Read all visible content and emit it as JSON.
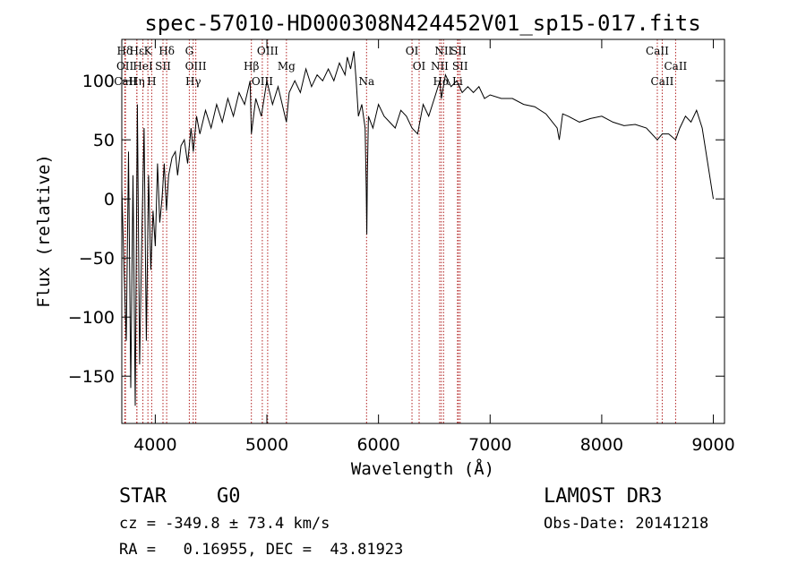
{
  "chart_data": {
    "type": "line",
    "title": "spec-57010-HD000308N424452V01_sp15-017.fits",
    "xlabel": "Wavelength (Å)",
    "ylabel": "Flux (relative)",
    "xlim": [
      3700,
      9100
    ],
    "ylim": [
      -190,
      135
    ],
    "x_ticks": [
      4000,
      5000,
      6000,
      7000,
      8000,
      9000
    ],
    "y_ticks": [
      -150,
      -100,
      -50,
      0,
      50,
      100
    ],
    "series": [
      {
        "name": "flux",
        "x": [
          3700,
          3720,
          3740,
          3760,
          3780,
          3800,
          3820,
          3840,
          3860,
          3880,
          3900,
          3920,
          3940,
          3960,
          3980,
          4000,
          4020,
          4040,
          4060,
          4080,
          4100,
          4120,
          4150,
          4180,
          4200,
          4230,
          4260,
          4290,
          4320,
          4340,
          4370,
          4400,
          4450,
          4500,
          4550,
          4600,
          4650,
          4700,
          4750,
          4800,
          4850,
          4861,
          4900,
          4950,
          5000,
          5050,
          5100,
          5150,
          5175,
          5200,
          5250,
          5300,
          5350,
          5400,
          5450,
          5500,
          5550,
          5600,
          5650,
          5700,
          5720,
          5750,
          5780,
          5800,
          5820,
          5850,
          5880,
          5890,
          5895,
          5900,
          5910,
          5950,
          6000,
          6050,
          6100,
          6150,
          6200,
          6250,
          6300,
          6350,
          6400,
          6450,
          6500,
          6550,
          6563,
          6600,
          6650,
          6700,
          6750,
          6800,
          6850,
          6900,
          6950,
          7000,
          7100,
          7200,
          7300,
          7400,
          7500,
          7600,
          7620,
          7650,
          7700,
          7800,
          7900,
          8000,
          8100,
          8200,
          8300,
          8400,
          8498,
          8542,
          8600,
          8662,
          8700,
          8750,
          8800,
          8850,
          8900,
          8950,
          9000
        ],
        "y": [
          10,
          -60,
          -120,
          40,
          -160,
          20,
          -175,
          80,
          -140,
          -30,
          60,
          -120,
          20,
          -60,
          -10,
          -40,
          30,
          -20,
          0,
          30,
          -10,
          20,
          35,
          40,
          20,
          45,
          50,
          30,
          60,
          40,
          70,
          55,
          75,
          60,
          80,
          65,
          85,
          70,
          90,
          80,
          100,
          55,
          85,
          70,
          100,
          80,
          95,
          75,
          65,
          90,
          100,
          90,
          110,
          95,
          105,
          100,
          110,
          100,
          115,
          105,
          120,
          110,
          125,
          100,
          70,
          80,
          60,
          10,
          -30,
          20,
          70,
          60,
          80,
          70,
          65,
          60,
          75,
          70,
          60,
          55,
          80,
          70,
          85,
          100,
          85,
          105,
          95,
          100,
          90,
          95,
          90,
          95,
          85,
          88,
          85,
          85,
          80,
          78,
          72,
          60,
          50,
          72,
          70,
          65,
          68,
          70,
          65,
          62,
          63,
          60,
          50,
          55,
          55,
          50,
          60,
          70,
          65,
          75,
          60,
          30,
          0
        ]
      }
    ],
    "line_markers": [
      {
        "label": "Hδ",
        "wavelength": 3727
      },
      {
        "label": "OII",
        "wavelength": 3729
      },
      {
        "label": "CaII",
        "wavelength": 3733
      },
      {
        "label": "Hε",
        "wavelength": 3835
      },
      {
        "label": "HeI",
        "wavelength": 3889
      },
      {
        "label": "Hη",
        "wavelength": 3835
      },
      {
        "label": "K",
        "wavelength": 3934
      },
      {
        "label": "SII",
        "wavelength": 4069
      },
      {
        "label": "H",
        "wavelength": 3968
      },
      {
        "label": "Hδ",
        "wavelength": 4102
      },
      {
        "label": "OIII",
        "wavelength": 4363
      },
      {
        "label": "Hγ",
        "wavelength": 4340
      },
      {
        "label": "G",
        "wavelength": 4305
      },
      {
        "label": "Hβ",
        "wavelength": 4861
      },
      {
        "label": "OIII",
        "wavelength": 4959
      },
      {
        "label": "OIII",
        "wavelength": 5007
      },
      {
        "label": "Mg",
        "wavelength": 5175
      },
      {
        "label": "Na",
        "wavelength": 5893
      },
      {
        "label": "OI",
        "wavelength": 6300
      },
      {
        "label": "OI",
        "wavelength": 6364
      },
      {
        "label": "Hα",
        "wavelength": 6563
      },
      {
        "label": "SII",
        "wavelength": 6716
      },
      {
        "label": "NII",
        "wavelength": 6548
      },
      {
        "label": "Li",
        "wavelength": 6708
      },
      {
        "label": "NII",
        "wavelength": 6583
      },
      {
        "label": "SII",
        "wavelength": 6731
      },
      {
        "label": "CaII",
        "wavelength": 8542
      },
      {
        "label": "CaII",
        "wavelength": 8498
      },
      {
        "label": "CaII",
        "wavelength": 8662
      }
    ]
  },
  "info": {
    "object_type": "STAR",
    "subclass": "G0",
    "survey": "LAMOST DR3",
    "cz": "cz = -349.8 ± 73.4 km/s",
    "obs_date": "Obs-Date: 20141218",
    "coords": "RA =   0.16955, DEC =  43.81923"
  },
  "colors": {
    "line_marker": "#b22222",
    "spectrum": "#000000"
  }
}
